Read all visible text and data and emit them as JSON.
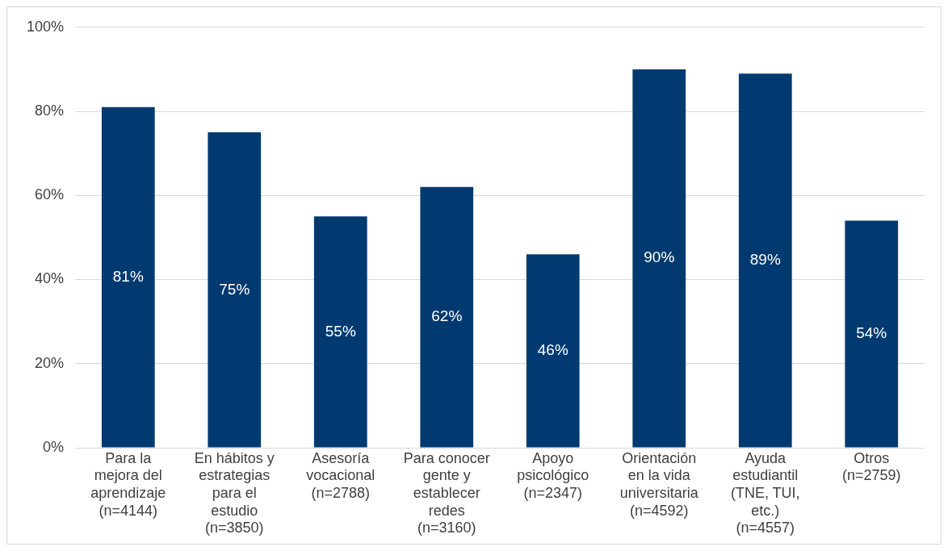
{
  "chart_data": {
    "type": "bar",
    "categories": [
      "Para la mejora del aprendizaje (n=4144)",
      "En hábitos y estrategias para el estudio (n=3850)",
      "Asesoría vocacional (n=2788)",
      "Para conocer gente y establecer redes (n=3160)",
      "Apoyo psicológico (n=2347)",
      "Orientación en la vida universitaria (n=4592)",
      "Ayuda estudiantil (TNE, TUI, etc.) (n=4557)",
      "Otros (n=2759)"
    ],
    "values": [
      81,
      75,
      55,
      62,
      46,
      90,
      89,
      54
    ],
    "value_labels": [
      "81%",
      "75%",
      "55%",
      "62%",
      "46%",
      "90%",
      "89%",
      "54%"
    ],
    "color": "#003a70",
    "ylim": [
      0,
      100
    ],
    "yticks": [
      {
        "value": 0,
        "label": "0%"
      },
      {
        "value": 20,
        "label": "20%"
      },
      {
        "value": 40,
        "label": "40%"
      },
      {
        "value": 60,
        "label": "60%"
      },
      {
        "value": 80,
        "label": "80%"
      },
      {
        "value": 100,
        "label": "100%"
      }
    ],
    "grid": "y",
    "legend": false
  }
}
